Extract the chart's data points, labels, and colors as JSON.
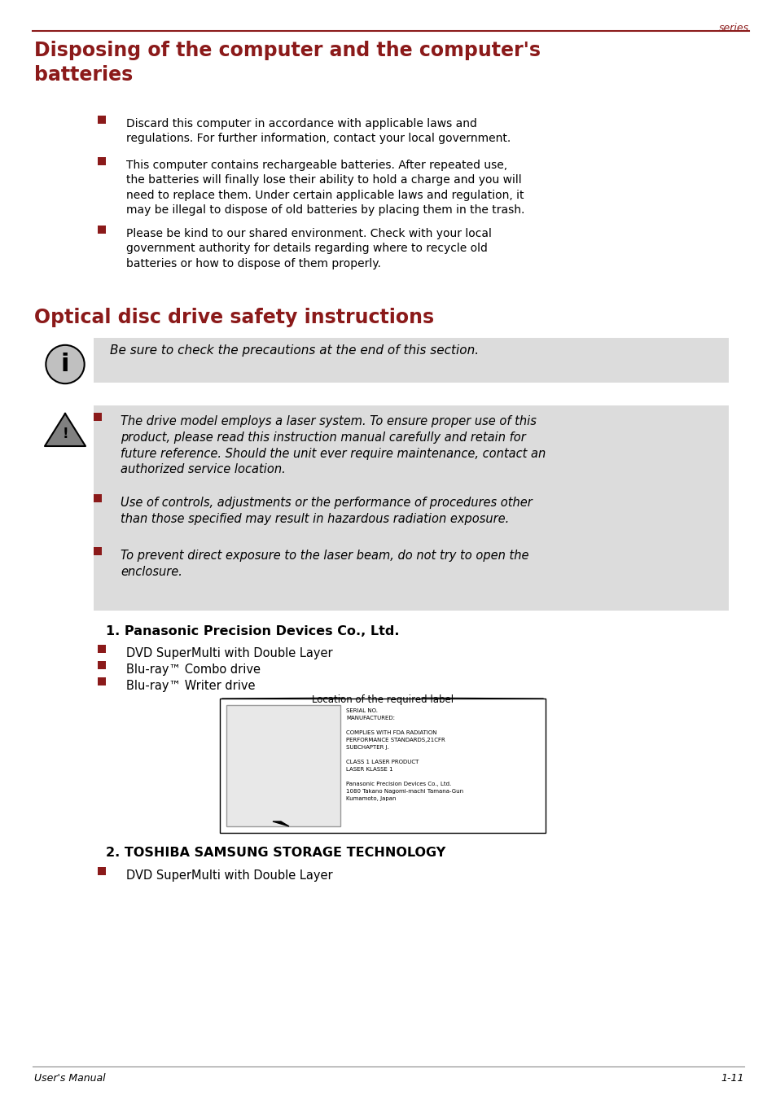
{
  "page_header_text": "series",
  "header_line_color": "#8B1A1A",
  "section1_title": "Disposing of the computer and the computer's\nbatteries",
  "section1_title_color": "#8B1A1A",
  "section1_bullets": [
    "Discard this computer in accordance with applicable laws and\nregulations. For further information, contact your local government.",
    "This computer contains rechargeable batteries. After repeated use,\nthe batteries will finally lose their ability to hold a charge and you will\nneed to replace them. Under certain applicable laws and regulation, it\nmay be illegal to dispose of old batteries by placing them in the trash.",
    "Please be kind to our shared environment. Check with your local\ngovernment authority for details regarding where to recycle old\nbatteries or how to dispose of them properly."
  ],
  "section2_title": "Optical disc drive safety instructions",
  "section2_title_color": "#8B1A1A",
  "info_box_text": "Be sure to check the precautions at the end of this section.",
  "info_box_bg": "#DCDCDC",
  "warning_bullets": [
    "The drive model employs a laser system. To ensure proper use of this\nproduct, please read this instruction manual carefully and retain for\nfuture reference. Should the unit ever require maintenance, contact an\nauthorized service location.",
    "Use of controls, adjustments or the performance of procedures other\nthan those specified may result in hazardous radiation exposure.",
    "To prevent direct exposure to the laser beam, do not try to open the\nenclosure."
  ],
  "warning_box_bg": "#DCDCDC",
  "subsection1_title": "1. Panasonic Precision Devices Co., Ltd.",
  "subsection1_bullets": [
    "DVD SuperMulti with Double Layer",
    "Blu-ray™ Combo drive",
    "Blu-ray™ Writer drive"
  ],
  "label_box_title": "Location of the required label",
  "label_box_lines": [
    "SERIAL NO.",
    "MANUFACTURED:",
    "",
    "COMPLIES WITH FDA RADIATION",
    "PERFORMANCE STANDARDS,21CFR",
    "SUBCHAPTER J.",
    "",
    "CLASS 1 LASER PRODUCT",
    "LASER KLASSE 1",
    "",
    "Panasonic Precision Devices Co., Ltd.",
    "1080 Takano Nagomi-machi Tamana-Gun",
    "Kumamoto, Japan"
  ],
  "subsection2_title": "2. TOSHIBA SAMSUNG STORAGE TECHNOLOGY",
  "subsection2_bullets": [
    "DVD SuperMulti with Double Layer"
  ],
  "footer_left": "User's Manual",
  "footer_right": "1-11",
  "bg_color": "#FFFFFF",
  "text_color": "#000000",
  "bullet_color": "#8B1A1A"
}
